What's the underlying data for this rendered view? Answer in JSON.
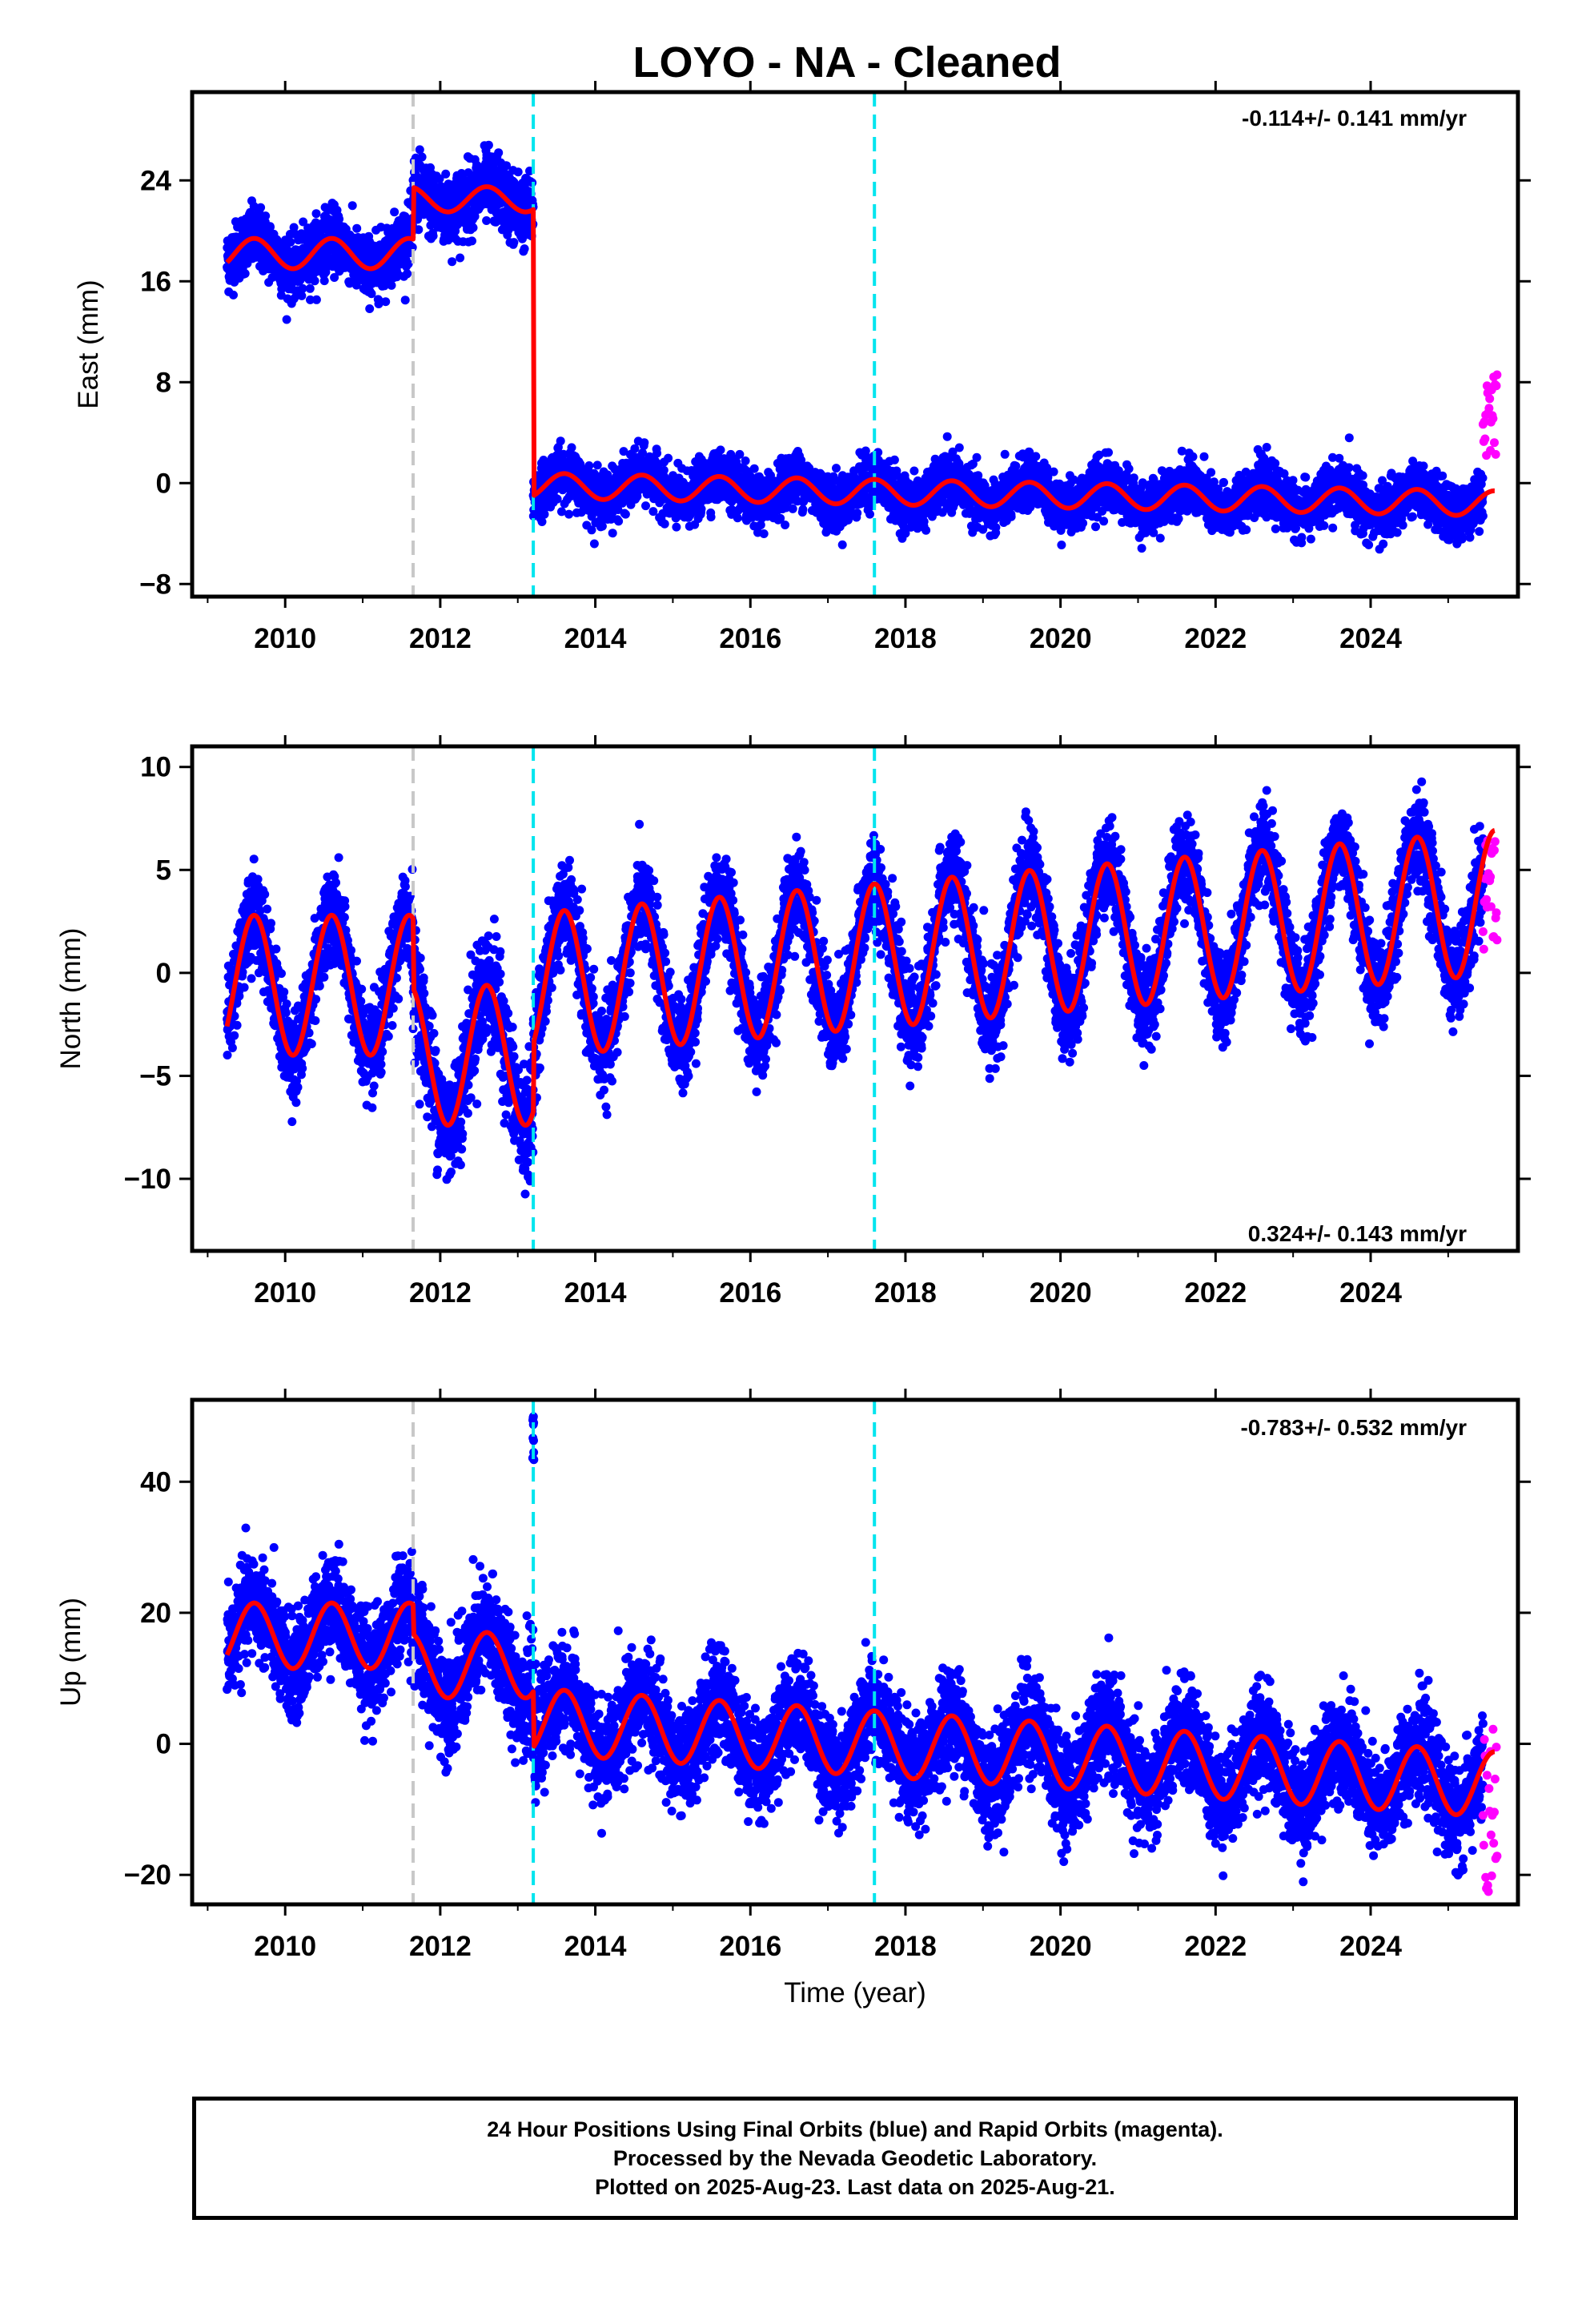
{
  "title": "LOYO  - NA - Cleaned",
  "xlabel": "Time (year)",
  "footer": {
    "line1": "24 Hour Positions Using Final Orbits (blue) and Rapid Orbits (magenta).",
    "line2": "Processed by the Nevada Geodetic Laboratory.",
    "line3": "Plotted on 2025-Aug-23. Last data on 2025-Aug-21."
  },
  "colors": {
    "final_orbits": "#0000ff",
    "rapid_orbits": "#ff00ff",
    "model": "#ff0000",
    "equipment_change": "#c8c8c8",
    "earthquake": "#00e5ee"
  },
  "chart_data": [
    {
      "type": "scatter",
      "panel": "east",
      "ylabel": "East (mm)",
      "rate_text": "-0.114+/- 0.141 mm/yr",
      "xlim": [
        2008.8,
        2025.9
      ],
      "ylim": [
        -9,
        31
      ],
      "xticks": [
        "2010",
        "2012",
        "2014",
        "2016",
        "2018",
        "2020",
        "2022",
        "2024"
      ],
      "yticks": [
        "24",
        "16",
        "8",
        "0",
        "-8"
      ],
      "ytick_values": [
        24,
        16,
        8,
        0,
        -8
      ],
      "vlines": [
        {
          "x": 2011.65,
          "kind": "equipment_change"
        },
        {
          "x": 2013.2,
          "kind": "earthquake"
        },
        {
          "x": 2017.6,
          "kind": "earthquake"
        }
      ],
      "segments": [
        {
          "x0": 2009.25,
          "x1": 2011.65,
          "offset": 18.2,
          "rate": 0.0,
          "amp": 1.2,
          "noise": 1.2
        },
        {
          "x0": 2011.65,
          "x1": 2013.2,
          "offset": 22.5,
          "rate": 0.0,
          "amp": 1.0,
          "noise": 1.4
        },
        {
          "x0": 2013.2,
          "x1": 2025.6,
          "offset": -0.2,
          "rate": -0.114,
          "amp": 1.0,
          "noise": 1.0
        }
      ],
      "rapid": {
        "x0": 2025.45,
        "x1": 2025.63,
        "y_range": [
          2,
          9
        ]
      }
    },
    {
      "type": "scatter",
      "panel": "north",
      "ylabel": "North (mm)",
      "rate_text": "0.324+/- 0.143 mm/yr",
      "xlim": [
        2008.8,
        2025.9
      ],
      "ylim": [
        -13.5,
        11
      ],
      "xticks": [
        "2010",
        "2012",
        "2014",
        "2016",
        "2018",
        "2020",
        "2022",
        "2024"
      ],
      "yticks": [
        "10",
        "5",
        "0",
        "-5",
        "-10"
      ],
      "ytick_values": [
        10,
        5,
        0,
        -5,
        -10
      ],
      "vlines": [
        {
          "x": 2011.65,
          "kind": "equipment_change"
        },
        {
          "x": 2013.2,
          "kind": "earthquake"
        },
        {
          "x": 2017.6,
          "kind": "earthquake"
        }
      ],
      "segments": [
        {
          "x0": 2009.25,
          "x1": 2011.65,
          "offset": -0.6,
          "rate": 0.0,
          "amp": 3.4,
          "noise": 1.1
        },
        {
          "x0": 2011.65,
          "x1": 2013.2,
          "offset": -4.0,
          "rate": 0.0,
          "amp": 3.4,
          "noise": 1.4
        },
        {
          "x0": 2013.2,
          "x1": 2025.6,
          "offset": -0.6,
          "rate": 0.324,
          "amp": 3.5,
          "noise": 1.1
        }
      ],
      "rapid": {
        "x0": 2025.45,
        "x1": 2025.63,
        "y_range": [
          1,
          6.5
        ]
      }
    },
    {
      "type": "scatter",
      "panel": "up",
      "ylabel": "Up (mm)",
      "rate_text": "-0.783+/- 0.532 mm/yr",
      "xlim": [
        2008.8,
        2025.9
      ],
      "ylim": [
        -24.5,
        52.5
      ],
      "xticks": [
        "2010",
        "2012",
        "2014",
        "2016",
        "2018",
        "2020",
        "2022",
        "2024"
      ],
      "yticks": [
        "40",
        "20",
        "0",
        "-20"
      ],
      "ytick_values": [
        40,
        20,
        0,
        -20
      ],
      "vlines": [
        {
          "x": 2011.65,
          "kind": "equipment_change"
        },
        {
          "x": 2013.2,
          "kind": "earthquake"
        },
        {
          "x": 2017.6,
          "kind": "earthquake"
        }
      ],
      "segments": [
        {
          "x0": 2009.25,
          "x1": 2011.65,
          "offset": 16.5,
          "rate": 0.0,
          "amp": 5.0,
          "noise": 3.8
        },
        {
          "x0": 2011.65,
          "x1": 2013.2,
          "offset": 12.0,
          "rate": 0.0,
          "amp": 5.0,
          "noise": 4.2
        },
        {
          "x0": 2013.2,
          "x1": 2025.6,
          "offset": 3.5,
          "rate": -0.783,
          "amp": 5.0,
          "noise": 3.8
        }
      ],
      "outliers": [
        {
          "x": 2013.2,
          "y_range": [
            43,
            51
          ]
        }
      ],
      "rapid": {
        "x0": 2025.45,
        "x1": 2025.63,
        "y_range": [
          -23,
          4
        ]
      }
    }
  ]
}
